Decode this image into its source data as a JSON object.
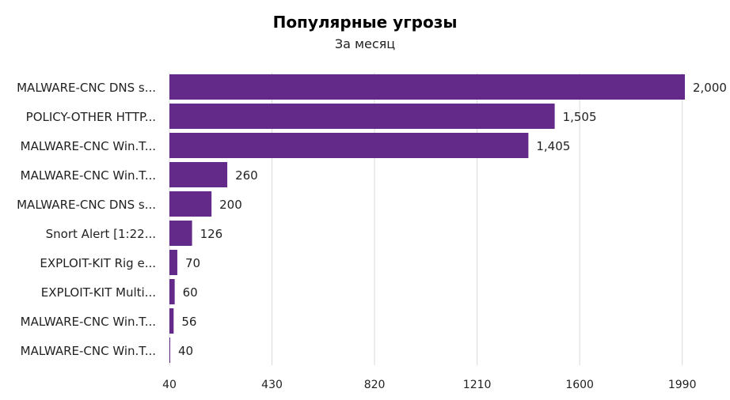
{
  "chart_data": {
    "type": "bar",
    "orientation": "horizontal",
    "title": "Популярные угрозы",
    "subtitle": "За месяц",
    "categories": [
      "MALWARE-CNC DNS s...",
      "POLICY-OTHER HTTP...",
      "MALWARE-CNC Win.T...",
      "MALWARE-CNC Win.T...",
      "MALWARE-CNC DNS s...",
      "Snort Alert [1:22...",
      "EXPLOIT-KIT Rig e...",
      "EXPLOIT-KIT Multi...",
      "MALWARE-CNC Win.T...",
      "MALWARE-CNC Win.T..."
    ],
    "values": [
      2000,
      1505,
      1405,
      260,
      200,
      126,
      70,
      60,
      56,
      40
    ],
    "value_labels": [
      "2,000",
      "1,505",
      "1,405",
      "260",
      "200",
      "126",
      "70",
      "60",
      "56",
      "40"
    ],
    "x_ticks": [
      40,
      430,
      820,
      1210,
      1600,
      1990
    ],
    "xlim": [
      40,
      2000
    ],
    "grid": "vertical",
    "bar_color": "#632a8a",
    "grid_color": "#d9d9d9",
    "text_color": "#222222"
  }
}
